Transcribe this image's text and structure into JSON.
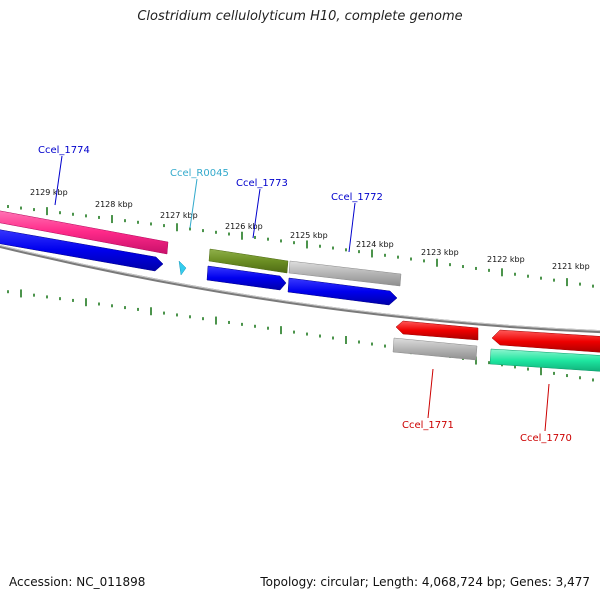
{
  "title": "Clostridium cellulolyticum H10, complete genome",
  "footer": {
    "accession": "Accession: NC_011898",
    "summary": "Topology: circular; Length: 4,068,724 bp; Genes: 3,477"
  },
  "colors": {
    "backbone": "#7a7a7a",
    "ticks": "#1f7a1f",
    "label_blue": "#0000cc",
    "label_red": "#cc0000",
    "label_cyan": "#33aacc",
    "feature_magenta": "#ff2a8a",
    "feature_blue": "#0000ee",
    "feature_olive": "#6b8e23",
    "feature_gray": "#b4b4b4",
    "feature_red": "#ee0000",
    "feature_green": "#1ee6a0",
    "feature_cyan": "#33ccee"
  },
  "kbp_labels": [
    "2129 kbp",
    "2128 kbp",
    "2127 kbp",
    "2126 kbp",
    "2125 kbp",
    "2124 kbp",
    "2123 kbp",
    "2122 kbp",
    "2121 kbp"
  ],
  "gene_labels": [
    {
      "id": "ccel-1774",
      "text": "Ccel_1774",
      "color": "blue"
    },
    {
      "id": "ccel-r0045",
      "text": "Ccel_R0045",
      "color": "cyan"
    },
    {
      "id": "ccel-1773",
      "text": "Ccel_1773",
      "color": "blue"
    },
    {
      "id": "ccel-1772",
      "text": "Ccel_1772",
      "color": "blue"
    },
    {
      "id": "ccel-1771",
      "text": "Ccel_1771",
      "color": "red"
    },
    {
      "id": "ccel-1770",
      "text": "Ccel_1770",
      "color": "red"
    }
  ]
}
